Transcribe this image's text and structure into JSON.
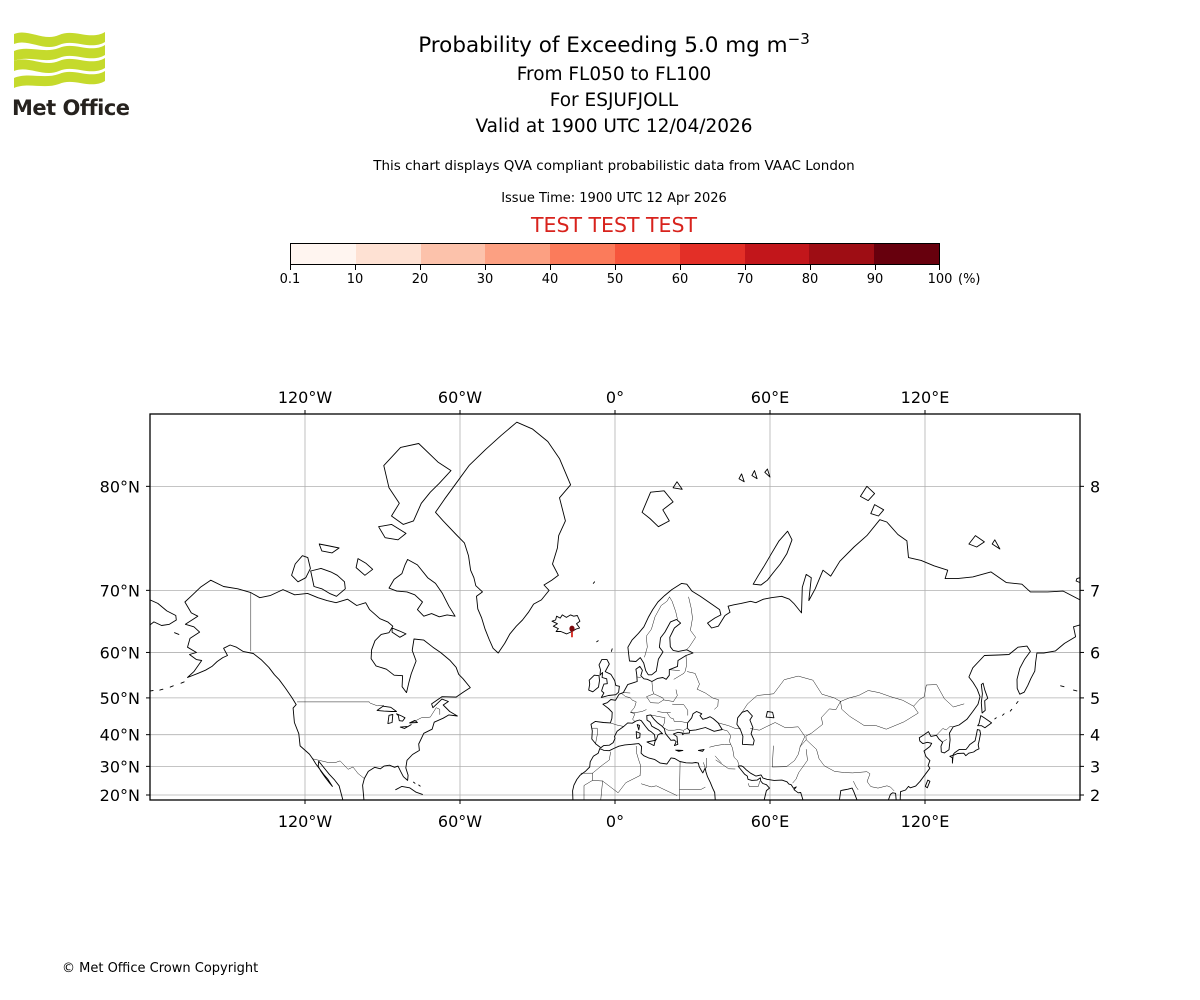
{
  "header": {
    "logo_text": "Met Office",
    "logo_color": "#c5da2c",
    "title": "Probability of Exceeding 5.0 mg m",
    "title_exponent": "−3",
    "subtitle_level": "From FL050 to FL100",
    "subtitle_volcano": "For ESJUFJOLL",
    "subtitle_valid": "Valid at 1900 UTC 12/04/2026",
    "description": "This chart displays QVA compliant probabilistic data from VAAC London",
    "issue_time": "Issue Time: 1900 UTC 12 Apr 2026",
    "test_banner": "TEST TEST TEST",
    "test_color": "#d8231d"
  },
  "colorbar": {
    "unit": "(%)",
    "tick_labels": [
      "0.1",
      "10",
      "20",
      "30",
      "40",
      "50",
      "60",
      "70",
      "80",
      "90",
      "100"
    ],
    "segment_colors": [
      "#fff5f0",
      "#fee1d3",
      "#fcc2ab",
      "#fca082",
      "#fb7b5b",
      "#f6553c",
      "#e32f27",
      "#c2161b",
      "#9e0d14",
      "#67000d"
    ]
  },
  "map": {
    "grid_color": "#b0b0b0",
    "lon_ticks": [
      {
        "label": "120°W",
        "lon": -120
      },
      {
        "label": "60°W",
        "lon": -60
      },
      {
        "label": "0°",
        "lon": 0
      },
      {
        "label": "60°E",
        "lon": 60
      },
      {
        "label": "120°E",
        "lon": 120
      }
    ],
    "lat_ticks": [
      {
        "label": "80°N",
        "lat": 80
      },
      {
        "label": "70°N",
        "lat": 70
      },
      {
        "label": "60°N",
        "lat": 60
      },
      {
        "label": "50°N",
        "lat": 50
      },
      {
        "label": "40°N",
        "lat": 40
      },
      {
        "label": "30°N",
        "lat": 30
      },
      {
        "label": "20°N",
        "lat": 20
      }
    ],
    "ash_contour": {
      "name": "exceedance-probability-area",
      "volcano": "ESJUFJOLL",
      "lon": -16.65,
      "lat": 64.27,
      "color_high": "#7c0a0e",
      "color_low": "#d8281e"
    }
  },
  "footer": {
    "copyright": "© Met Office Crown Copyright"
  }
}
